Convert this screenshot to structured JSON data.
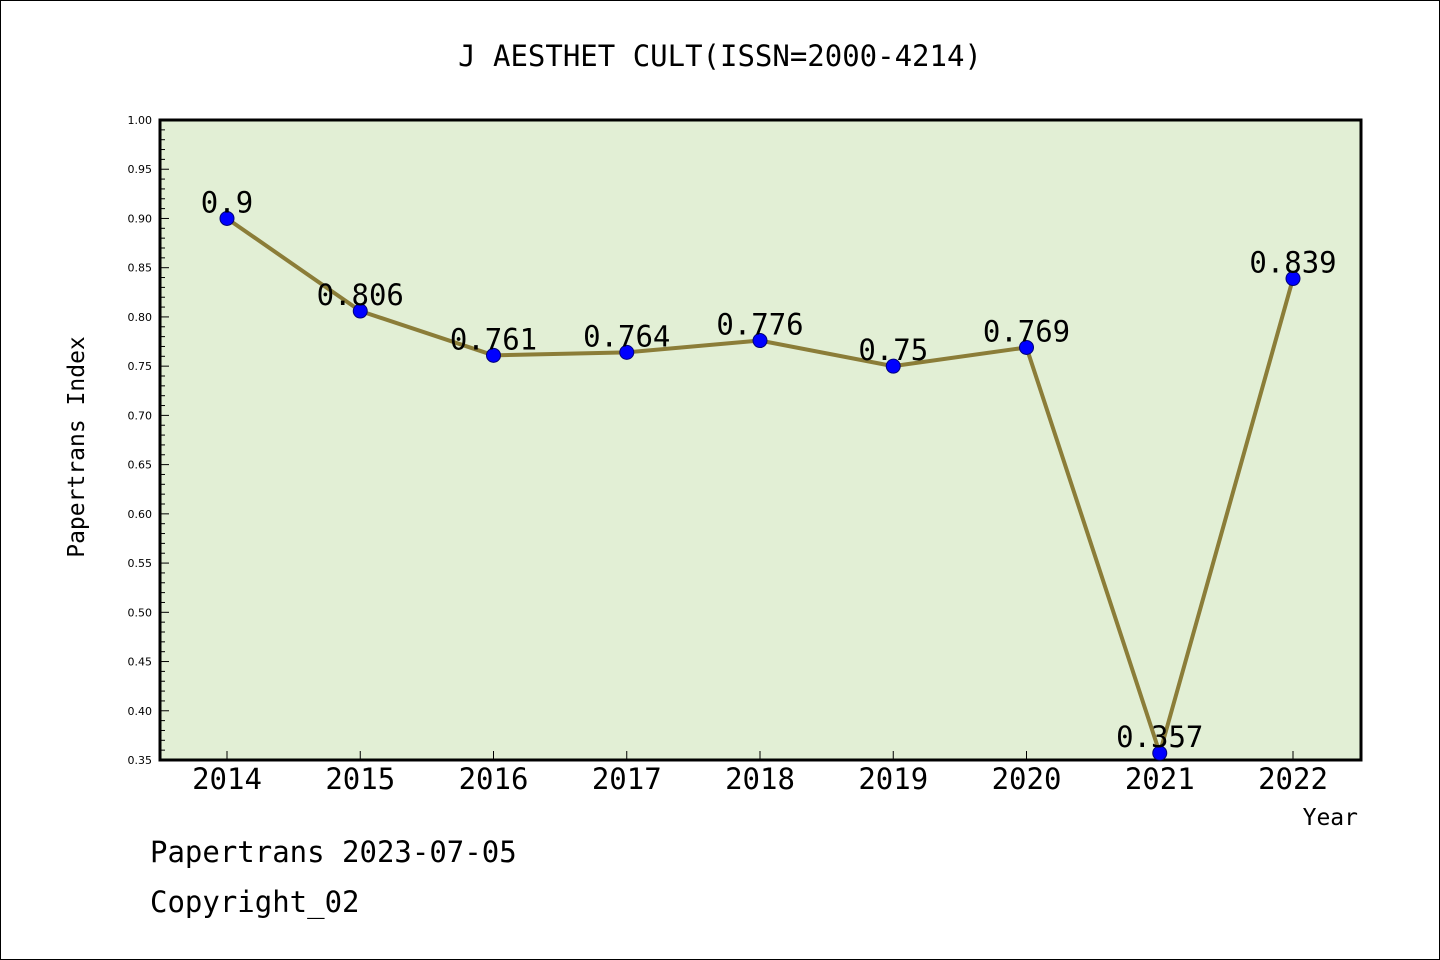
{
  "chart_data": {
    "type": "line",
    "title": "J AESTHET CULT(ISSN=2000-4214)",
    "xlabel": "Year",
    "ylabel": "Papertrans Index",
    "categories": [
      "2014",
      "2015",
      "2016",
      "2017",
      "2018",
      "2019",
      "2020",
      "2021",
      "2022"
    ],
    "values": [
      0.9,
      0.806,
      0.761,
      0.764,
      0.776,
      0.75,
      0.769,
      0.357,
      0.839
    ],
    "data_labels": [
      "0.9",
      "0.806",
      "0.761",
      "0.764",
      "0.776",
      "0.75",
      "0.769",
      "0.357",
      "0.839"
    ],
    "ylim": [
      0.35,
      1.0
    ],
    "y_ticks": [
      "0.35",
      "0.40",
      "0.45",
      "0.50",
      "0.55",
      "0.60",
      "0.65",
      "0.70",
      "0.75",
      "0.80",
      "0.85",
      "0.90",
      "0.95",
      "1.00"
    ],
    "grid": false,
    "colors": {
      "plot_background": "#e2efd5",
      "line": "#8b7d38",
      "marker": "#0000ff"
    }
  },
  "footer": {
    "date_line": "Papertrans 2023-07-05",
    "copyright": "Copyright_02"
  }
}
